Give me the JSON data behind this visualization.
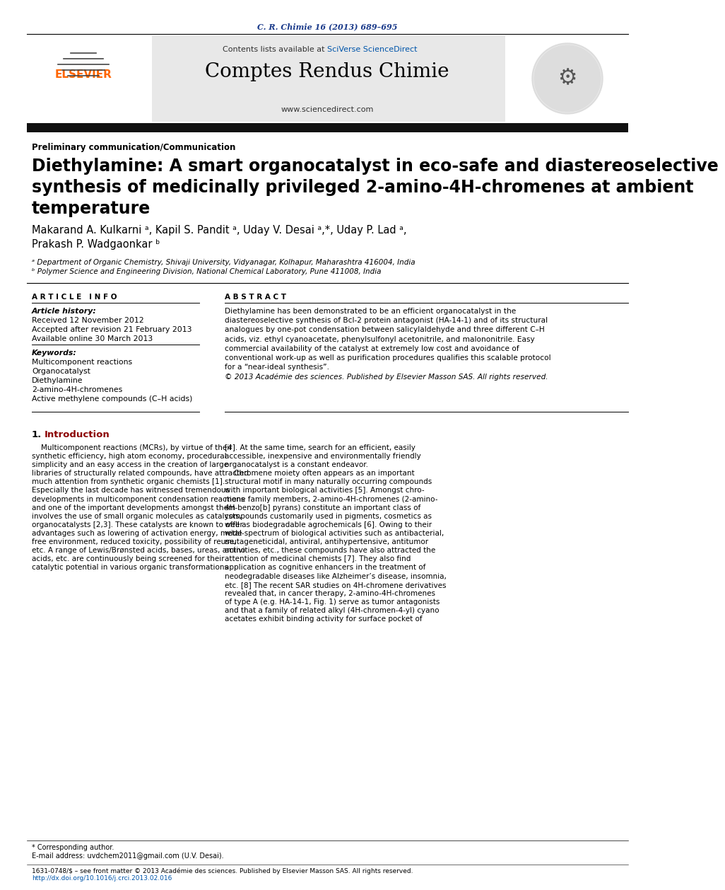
{
  "journal_ref": "C. R. Chimie 16 (2013) 689–695",
  "contents_line": "Contents lists available at SciVerse ScienceDirect",
  "journal_name": "Comptes Rendus Chimie",
  "journal_url": "www.sciencedirect.com",
  "section_label": "Preliminary communication/Communication",
  "title_line1": "Diethylamine: A smart organocatalyst in eco-safe and diastereoselective",
  "title_line2": "synthesis of medicinally privileged 2-amino-4H-chromenes at ambient",
  "title_line3": "temperature",
  "author_line1": "Makarand A. Kulkarni ᵃ, Kapil S. Pandit ᵃ, Uday V. Desai ᵃ,*, Uday P. Lad ᵃ,",
  "author_line2": "Prakash P. Wadgaonkar ᵇ",
  "affil_a": "ᵃ Department of Organic Chemistry, Shivaji University, Vidyanagar, Kolhapur, Maharashtra 416004, India",
  "affil_b": "ᵇ Polymer Science and Engineering Division, National Chemical Laboratory, Pune 411008, India",
  "article_info_header": "A R T I C L E   I N F O",
  "abstract_header": "A B S T R A C T",
  "article_history_label": "Article history:",
  "received": "Received 12 November 2012",
  "accepted": "Accepted after revision 21 February 2013",
  "available": "Available online 30 March 2013",
  "keywords_label": "Keywords:",
  "keywords": [
    "Multicomponent reactions",
    "Organocatalyst",
    "Diethylamine",
    "2-amino-4H-chromenes",
    "Active methylene compounds (C–H acids)"
  ],
  "abstract_lines": [
    "Diethylamine has been demonstrated to be an efficient organocatalyst in the",
    "diastereoselective synthesis of Bcl-2 protein antagonist (HA-14-1) and of its structural",
    "analogues by one-pot condensation between salicylaldehyde and three different C–H",
    "acids, viz. ethyl cyanoacetate, phenylsulfonyl acetonitrile, and malononitrile. Easy",
    "commercial availability of the catalyst at extremely low cost and avoidance of",
    "conventional work-up as well as purification procedures qualifies this scalable protocol",
    "for a “near-ideal synthesis”.",
    "© 2013 Académie des sciences. Published by Elsevier Masson SAS. All rights reserved."
  ],
  "intro_col1_lines": [
    "    Multicomponent reactions (MCRs), by virtue of their",
    "synthetic efficiency, high atom economy, procedural",
    "simplicity and an easy access in the creation of large",
    "libraries of structurally related compounds, have attracted",
    "much attention from synthetic organic chemists [1].",
    "Especially the last decade has witnessed tremendous",
    "developments in multicomponent condensation reactions",
    "and one of the important developments amongst them",
    "involves the use of small organic molecules as catalysts,",
    "organocatalysts [2,3]. These catalysts are known to offer",
    "advantages such as lowering of activation energy, metal-",
    "free environment, reduced toxicity, possibility of reuse,",
    "etc. A range of Lewis/Brønsted acids, bases, ureas, amino",
    "acids, etc. are continuously being screened for their",
    "catalytic potential in various organic transformations"
  ],
  "intro_col2_lines": [
    "[4]. At the same time, search for an efficient, easily",
    "accessible, inexpensive and environmentally friendly",
    "organocatalyst is a constant endeavor.",
    "    Chromene moiety often appears as an important",
    "structural motif in many naturally occurring compounds",
    "with important biological activities [5]. Amongst chro-",
    "mene family members, 2-amino-4H-chromenes (2-amino-",
    "4H-benzo[b] pyrans) constitute an important class of",
    "compounds customarily used in pigments, cosmetics as",
    "well as biodegradable agrochemicals [6]. Owing to their",
    "wide spectrum of biological activities such as antibacterial,",
    "mutageneticidal, antiviral, antihypertensive, antitumor",
    "activities, etc., these compounds have also attracted the",
    "attention of medicinal chemists [7]. They also find",
    "application as cognitive enhancers in the treatment of",
    "neodegradable diseases like Alzheimer’s disease, insomnia,",
    "etc. [8] The recent SAR studies on 4H-chromene derivatives",
    "revealed that, in cancer therapy, 2-amino-4H-chromenes",
    "of type A (e.g. HA-14-1, Fig. 1) serve as tumor antagonists",
    "and that a family of related alkyl (4H-chromen-4-yl) cyano",
    "acetates exhibit binding activity for surface pocket of"
  ],
  "footer_line1": "* Corresponding author.",
  "footer_line2": "E-mail address: uvdchem2011@gmail.com (U.V. Desai).",
  "footer_issn": "1631-0748/$ – see front matter © 2013 Académie des sciences. Published by Elsevier Masson SAS. All rights reserved.",
  "footer_doi": "http://dx.doi.org/10.1016/j.crci.2013.02.016",
  "bg_color": "#ffffff",
  "header_bg": "#e8e8e8",
  "dark_bar_color": "#111111",
  "journal_ref_color": "#1a3a8a",
  "sciverse_color": "#0055aa",
  "elsevier_color": "#ff6600",
  "intro_color": "#8b0000"
}
